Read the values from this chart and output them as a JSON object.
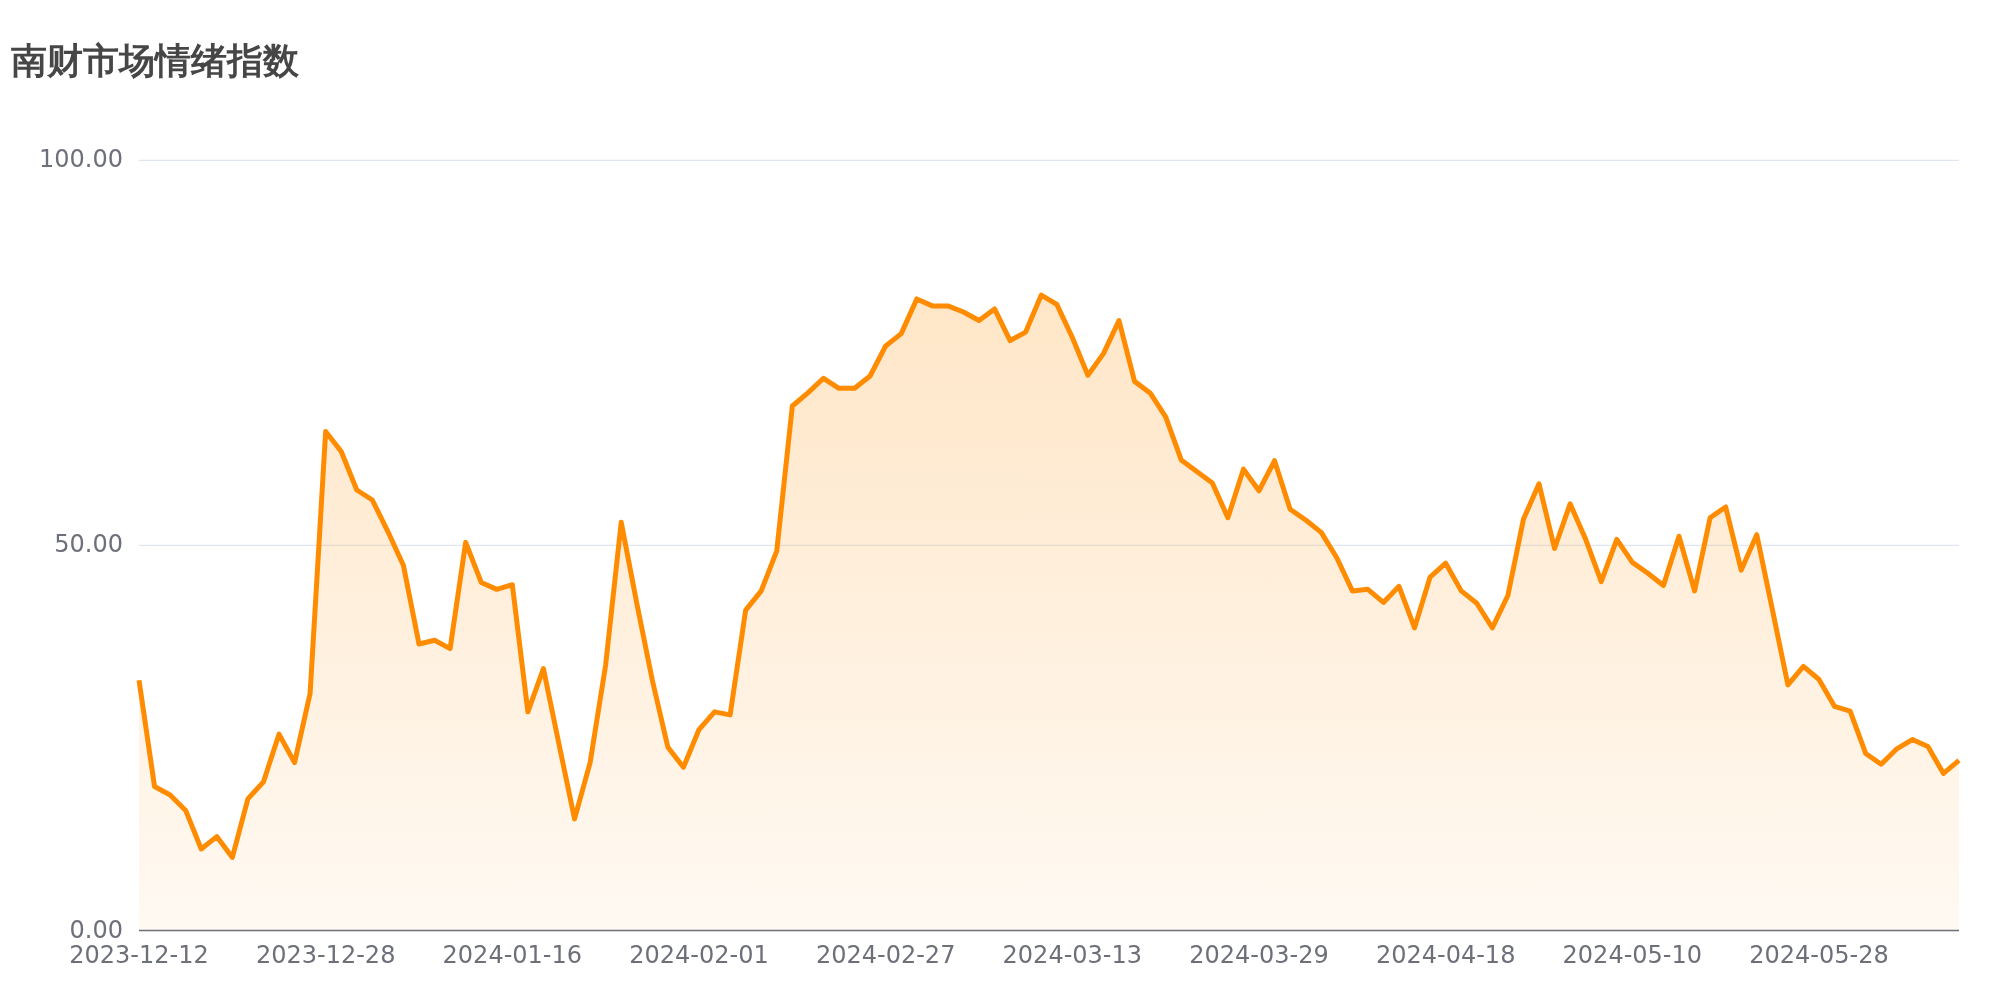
{
  "chart_data": {
    "type": "area",
    "title": "南财市场情绪指数",
    "categories": [
      "2023-12-12",
      null,
      null,
      null,
      null,
      null,
      null,
      null,
      null,
      null,
      null,
      null,
      "2023-12-28",
      null,
      null,
      null,
      null,
      null,
      null,
      null,
      null,
      null,
      null,
      null,
      "2024-01-16",
      null,
      null,
      null,
      null,
      null,
      null,
      null,
      null,
      null,
      null,
      null,
      "2024-02-01",
      null,
      null,
      null,
      null,
      null,
      null,
      null,
      null,
      null,
      null,
      null,
      "2024-02-27",
      null,
      null,
      null,
      null,
      null,
      null,
      null,
      null,
      null,
      null,
      null,
      "2024-03-13",
      null,
      null,
      null,
      null,
      null,
      null,
      null,
      null,
      null,
      null,
      null,
      "2024-03-29",
      null,
      null,
      null,
      null,
      null,
      null,
      null,
      null,
      null,
      null,
      null,
      "2024-04-18",
      null,
      null,
      null,
      null,
      null,
      null,
      null,
      null,
      null,
      null,
      null,
      "2024-05-10",
      null,
      null,
      null,
      null,
      null,
      null,
      null,
      null,
      null,
      null,
      null,
      "2024-05-28",
      null,
      null,
      null,
      null,
      null,
      null,
      null,
      null,
      null
    ],
    "series": [
      {
        "color": "#ff8c00",
        "values": [
          32.5,
          18.7,
          17.6,
          15.6,
          10.6,
          12.2,
          9.5,
          17.1,
          19.3,
          25.5,
          21.8,
          30.8,
          64.8,
          62.2,
          57.2,
          55.9,
          51.8,
          47.4,
          37.2,
          37.7,
          36.6,
          50.4,
          45.2,
          44.3,
          44.9,
          28.4,
          34.0,
          24.2,
          14.5,
          21.8,
          34.5,
          53.0,
          42.5,
          32.5,
          23.8,
          21.2,
          26.1,
          28.4,
          28.0,
          41.6,
          44.1,
          49.3,
          68.1,
          69.8,
          71.7,
          70.4,
          70.4,
          72.0,
          75.9,
          77.5,
          82.0,
          81.1,
          81.1,
          80.3,
          79.2,
          80.7,
          76.6,
          77.7,
          82.5,
          81.3,
          77.0,
          72.1,
          74.9,
          79.2,
          71.3,
          69.8,
          66.7,
          61.1,
          59.6,
          58.1,
          53.6,
          59.9,
          57.1,
          61.0,
          54.7,
          53.3,
          51.7,
          48.4,
          44.1,
          44.3,
          42.6,
          44.7,
          39.3,
          45.9,
          47.7,
          44.1,
          42.5,
          39.3,
          43.5,
          53.4,
          58.0,
          49.6,
          55.4,
          50.8,
          45.3,
          50.8,
          47.8,
          46.4,
          44.8,
          51.2,
          44.1,
          53.6,
          55.0,
          46.8,
          51.4,
          41.7,
          31.9,
          34.3,
          32.6,
          29.1,
          28.5,
          23.0,
          21.6,
          23.6,
          24.8,
          23.9,
          20.4,
          22.1
        ]
      }
    ],
    "ylim": [
      0,
      100
    ],
    "yticks": [
      {
        "value": 0,
        "label": "0.00"
      },
      {
        "value": 50,
        "label": "50.00"
      },
      {
        "value": 100,
        "label": "100.00"
      }
    ],
    "grid": "y"
  }
}
